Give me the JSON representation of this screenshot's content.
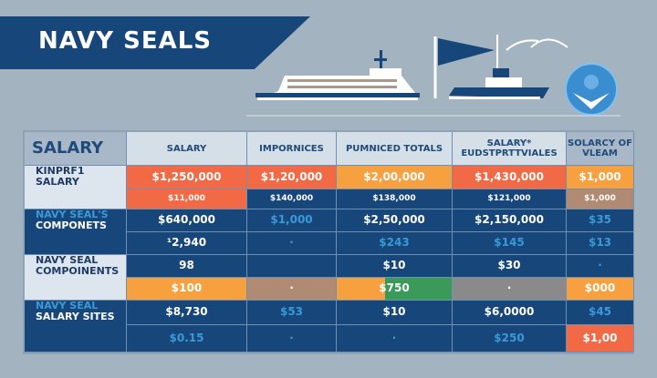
{
  "title": "NAVY SEALS",
  "colors": {
    "red": "#f26a45",
    "orange": "#f7a040",
    "navy": "#17467a",
    "tan": "#b08a72",
    "green": "#3a9a5a",
    "gray": "#8a8a8a",
    "light": "#dde6ee",
    "blue_text": "#3a9ad8"
  },
  "headers": [
    "SALARY",
    "SALARY",
    "IMPORNICES",
    "PUMNICED TOTALS",
    "SALARY* EUDSTPRTTVIALES",
    "SOLARCY OF VLEAM"
  ],
  "row_labels": [
    {
      "line1": "KINPRF1",
      "line2": "SALARY",
      "bg": "light"
    },
    {
      "line1": "NAVY SEAL'S",
      "line2": "COMPONETS",
      "bg": "navy"
    },
    {
      "line1": "NAVY SEAL",
      "line2": "COMPOINENTS",
      "bg": "light"
    },
    {
      "line1": "NAVY SEAL",
      "line2": "SALARY SITES",
      "bg": "navy"
    }
  ],
  "rows": [
    [
      {
        "t": "$1,250,000",
        "bg": "red"
      },
      {
        "t": "$1,20,000",
        "bg": "red"
      },
      {
        "t": "$2,00,000",
        "bg": "orange"
      },
      {
        "t": "$1,430,000",
        "bg": "red"
      },
      {
        "t": "$1,000",
        "bg": "orange"
      }
    ],
    [
      {
        "t": "$11,000",
        "bg": "red",
        "s": 1
      },
      {
        "t": "$140,000",
        "bg": "navy",
        "s": 1
      },
      {
        "t": "$138,000",
        "bg": "navy",
        "s": 1
      },
      {
        "t": "$121,000",
        "bg": "navy",
        "s": 1
      },
      {
        "t": "$1,000",
        "bg": "tan",
        "s": 1
      }
    ],
    [
      {
        "t": "$640,000",
        "bg": "navy"
      },
      {
        "t": "$1,000",
        "bg": "navy",
        "b": 1
      },
      {
        "t": "$2,50,000",
        "bg": "navy"
      },
      {
        "t": "$2,150,000",
        "bg": "navy"
      },
      {
        "t": "$35",
        "bg": "navy",
        "b": 1
      }
    ],
    [
      {
        "t": "¹2,940",
        "bg": "navy"
      },
      {
        "t": "·",
        "bg": "navy",
        "b": 1
      },
      {
        "t": "$243",
        "bg": "navy",
        "b": 1
      },
      {
        "t": "$145",
        "bg": "navy",
        "b": 1
      },
      {
        "t": "$13",
        "bg": "navy",
        "b": 1
      }
    ],
    [
      {
        "t": "98",
        "bg": "navy"
      },
      {
        "t": "",
        "bg": "navy"
      },
      {
        "t": "$10",
        "bg": "navy"
      },
      {
        "t": "$30",
        "bg": "navy"
      },
      {
        "t": "·",
        "bg": "navy",
        "b": 1
      }
    ],
    [
      {
        "t": "$100",
        "bg": "orange"
      },
      {
        "t": "·",
        "bg": "tan"
      },
      {
        "t": "$750",
        "bg": "green"
      },
      {
        "t": "·",
        "bg": "gray"
      },
      {
        "t": "$000",
        "bg": "orange"
      }
    ],
    [
      {
        "t": "$8,730",
        "bg": "navy"
      },
      {
        "t": "$53",
        "bg": "navy",
        "b": 1
      },
      {
        "t": "$10",
        "bg": "navy"
      },
      {
        "t": "$6,0000",
        "bg": "navy"
      },
      {
        "t": "$45",
        "bg": "navy",
        "b": 1
      }
    ],
    [
      {
        "t": "$0.15",
        "bg": "navy",
        "b": 1
      },
      {
        "t": "·",
        "bg": "navy",
        "b": 1
      },
      {
        "t": "·",
        "bg": "navy",
        "b": 1
      },
      {
        "t": "$250",
        "bg": "navy",
        "b": 1
      },
      {
        "t": "$1,00",
        "bg": "red"
      }
    ]
  ]
}
